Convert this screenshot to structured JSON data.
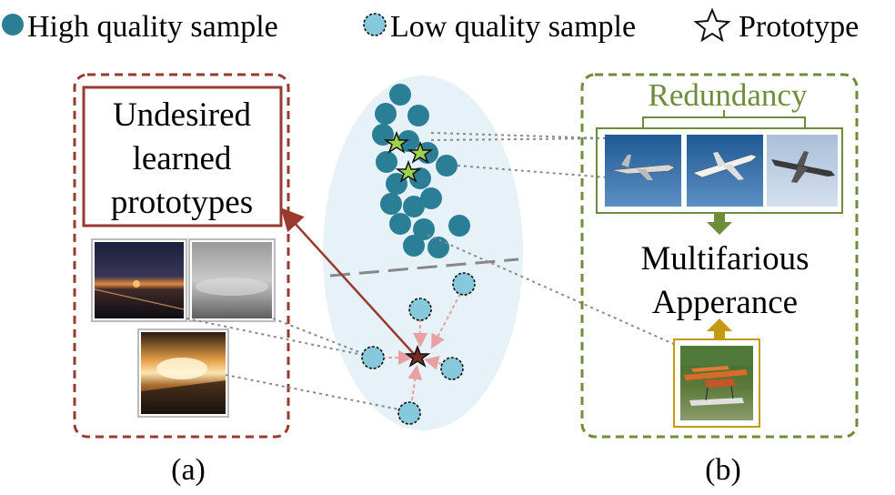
{
  "legend": {
    "high_quality": "High quality sample",
    "low_quality": "Low quality sample",
    "prototype": "Prototype",
    "icons": [
      "high-quality-dot",
      "low-quality-dashed-dot",
      "star"
    ]
  },
  "panel_a": {
    "box_title_lines": [
      "Undesired",
      "learned",
      "prototypes"
    ],
    "caption": "(a)",
    "photos": [
      "dark horizon at dusk",
      "cloudy grey sky",
      "sunset above clouds"
    ]
  },
  "panel_b": {
    "redundancy_label": "Redundancy",
    "multifarious_lines": [
      "Multifarious",
      "Apperance"
    ],
    "caption": "(b)",
    "photos": [
      "airplane flying",
      "airplane flying",
      "airplane flying",
      "seaplane on grass"
    ]
  },
  "colors": {
    "high_quality": "#2a7f96",
    "low_quality": "#86c9dc",
    "prototype_good": "#9ed24a",
    "prototype_bad": "#7a2b22",
    "panel_a": "#9a3a2e",
    "panel_b": "#6e8c3a",
    "gold_arrow": "#c49a12",
    "ellipse": "#e6f2f7"
  }
}
